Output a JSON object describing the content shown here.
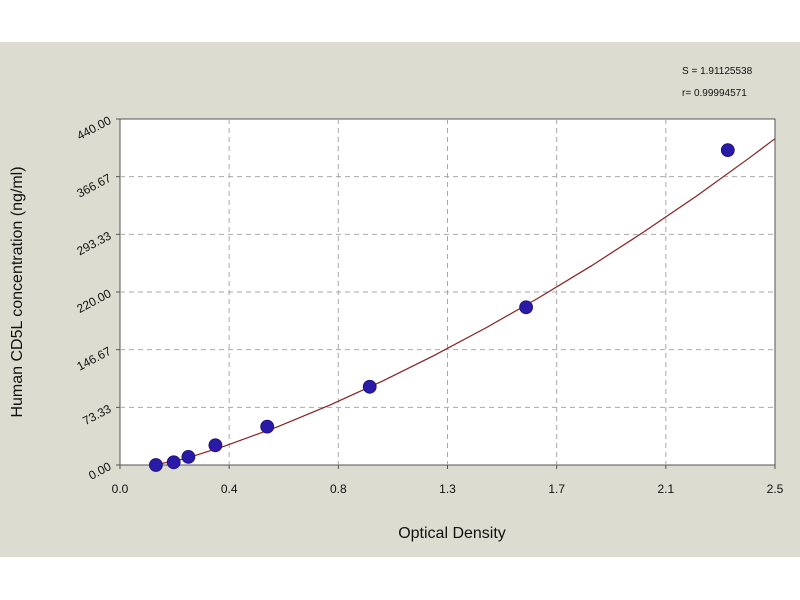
{
  "chart_data": {
    "type": "scatter",
    "xlabel": "Optical Density",
    "ylabel": "Human CD5L concentration (ng/ml)",
    "xlim": [
      0.0,
      2.5
    ],
    "ylim": [
      0.0,
      440.0
    ],
    "x_ticks": [
      "0.0",
      "0.4",
      "0.8",
      "1.3",
      "1.7",
      "2.1",
      "2.5"
    ],
    "y_ticks": [
      "0.00",
      "73.33",
      "146.67",
      "220.00",
      "293.33",
      "366.67",
      "440.00"
    ],
    "grid": true,
    "stats": [
      "S = 1.91125538",
      "r= 0.99994571"
    ],
    "points": [
      {
        "x": 0.137,
        "y": 0.0
      },
      {
        "x": 0.205,
        "y": 3.4
      },
      {
        "x": 0.261,
        "y": 10.3
      },
      {
        "x": 0.364,
        "y": 25.1
      },
      {
        "x": 0.562,
        "y": 48.8
      },
      {
        "x": 0.953,
        "y": 99.4
      },
      {
        "x": 1.55,
        "y": 200.6
      },
      {
        "x": 2.32,
        "y": 400.5
      }
    ],
    "curve": [
      [
        0.13,
        0.0
      ],
      [
        0.25,
        8.2
      ],
      [
        0.4,
        24.0
      ],
      [
        0.6,
        48.5
      ],
      [
        0.8,
        76.0
      ],
      [
        1.0,
        106.5
      ],
      [
        1.2,
        139.5
      ],
      [
        1.4,
        175.0
      ],
      [
        1.6,
        213.0
      ],
      [
        1.8,
        253.5
      ],
      [
        2.0,
        296.5
      ],
      [
        2.2,
        342.0
      ],
      [
        2.4,
        390.0
      ],
      [
        2.45,
        402.5
      ],
      [
        2.5,
        415.0
      ]
    ],
    "colors": {
      "points": "#2a1aa8",
      "curve": "#8a1f1f",
      "grid": "#a9a9a9",
      "plot_bg": "#ffffff",
      "frame_bg": "#dcdcd0"
    }
  }
}
